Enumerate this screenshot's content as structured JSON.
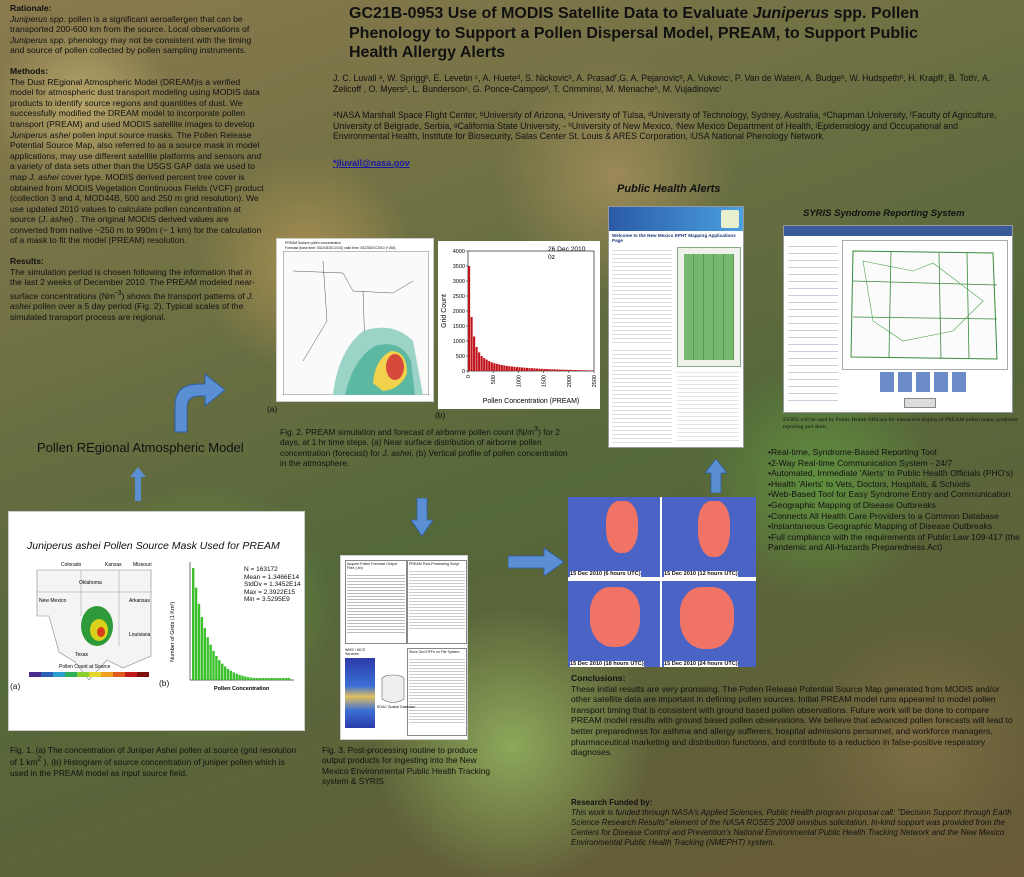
{
  "left": {
    "rationale_heading": "Rationale:",
    "rationale_pre": "Juniperus spp.",
    "rationale_body1": " pollen is a significant aeroallergen that can be transported 200-600 km from the source. Local observations of ",
    "rationale_mid": "Juniperus spp.",
    "rationale_body2": " phenology may not be consistent with the timing and source of pollen collected by pollen sampling instruments.",
    "methods_heading": "Methods:",
    "methods_body1": "The Dust REgional Atmospheric Model (DREAM)is a verified model for atmospheric dust transport modeling using MODIS data products to identify source regions and quantities of dust. We successfully modified the DREAM model to incorporate pollen transport (PREAM) and used MODIS satellite images to develop ",
    "methods_it1": "Juniperus ashei",
    "methods_body2": " pollen input source masks. The Pollen Release Potential Source Map, also referred to as a source mask in model applications, may use different satellite platforms and sensors and a variety of data sets other than the USGS GAP data we used to map ",
    "methods_it2": "J. ashei",
    "methods_body3": " cover type. MODIS derived percent tree cover is obtained from MODIS Vegetation Continuous Fields (VCF) product (collection 3 and 4, MOD44B, 500 and 250 m grid resolution). We use updated 2010 values to calculate pollen concentration at source (",
    "methods_it3": "J. ashei",
    "methods_body4": ") . The original MODIS derived values are converted from native ~250 m to 990m (~ 1 km) for the calculation of a mask to fit the model (PREAM) resolution.",
    "results_heading": "Results:",
    "results_body1": "The simulation period is chosen following the information that in the last 2 weeks of December 2010. The PREAM modeled near-surface concentrations (Nm",
    "results_sup": "-3",
    "results_body2": ") shows the transport patterns of ",
    "results_it": "J. ashei",
    "results_body3": " pollen over a 5 day period (Fig. 2). Typical scales of the simulated transport process are regional."
  },
  "header": {
    "title_pre": "GC21B-0953 Use of MODIS Satellite Data to Evaluate ",
    "title_italic": "Juniperus",
    "title_post": " spp. Pollen Phenology to Support a Pollen Dispersal Model, PREAM, to Support Public Health Allergy Alerts",
    "authors": "J. C. Luvall ᵃ, W. Spriggᵇ, E. Levetin ᶜ, A. Hueteᵈ, S. Nickovicᵇ, A. Prasadᶠ,G. A. Pejanovicᵇ, A. Vukovicⁱ, P. Van de Waterᵍ, A. Budgeʰ, W. Hudspethʰ, H. Krapflⁱ, B. Tothⁱ, A. Zelicoff , O. Myersʰ, L. Bundersonᶜ, G. Ponce-Camposᵈ, T.  Crimminsʲ, M. Menacheʰ, M. Vujadinovicⁱ",
    "affiliations": "ᵃNASA Marshall Space Flight Center, ᵇUniversity of Arizona, ᶜUniversity of Tulsa, ᵈUniversity of Technology, Sydney, Australia, ᵉChapman University, ᶠFaculty of Agriculture, University of Belgrade, Serbia, ᵍCalifornia State University, - ʰUniversity of New Mexico, ⁱNew Mexico Department of Health, ʲEpidemiology and Occupational and Environmental Health, Institute for Biosecurity, Salas Center St. Louis  &  ARES Corporation, ʲUSA National Phenology Network.",
    "email": "*jluvall@nasa.gov"
  },
  "fig2": {
    "map_title_1": "PREAM  Surface  pollen  concentration",
    "map_title_2": "Forecast  (base time: 00Z/15DEC2010)      valid  time: 00Z26DEC2010  (+264)",
    "label_a": "(a)",
    "label_b": "(b)",
    "caption_1": "Fig. 2. PREAM simulation and forecast of airborne pollen count (N/m",
    "caption_sup": "3",
    "caption_2": ") for 2 days, at 1 hr time steps. (a) Near surface distribution of airborne pollen concentration (forecast) for ",
    "caption_it": "J. ashei",
    "caption_3": ", (b) Vertical profile of pollen concentration in the atmosphere."
  },
  "model_label": "Pollen REgional Atmospheric Model",
  "fig1": {
    "panel_title": "Juniperus ashei Pollen Source Mask Used for PREAM",
    "states": [
      "Colorado",
      "Kansas",
      "Missouri",
      "Oklahoma",
      "New Mexico",
      "Arkansas",
      "Texas",
      "Louisiana"
    ],
    "legend_title": "Pollen Count at Source",
    "stats": [
      "N = 163172",
      "Mean = 1.3466E14",
      "StdDv = 1.3452E14",
      "Max = 2.3922E15",
      "Min = 3.5295E9"
    ],
    "ylabel": "Number of Grids (1 Km²)",
    "xlabel": "Pollen Concentration",
    "label_a": "(a)",
    "label_b": "(b)",
    "caption_1": "Fig. 1.  (a) The concentration of Juniper Ashei pollen at source (grid resolution of 1 km",
    "caption_sup": "2",
    "caption_2": " ). (b)  Histogram of source concentration of juniper pollen which is used in the PREAM model as input source field."
  },
  "fig3": {
    "caption": "Fig. 3. Post-processing routine to produce output products for ingesting into the New Mexico Environmental Public Health Tracking system & SYRIS",
    "box1": "Acquire Pollen Forecast Output Files (.txt)",
    "box2": "PREAM Post-Processing Script",
    "box3": "Store GeoTIFFs on File System",
    "box4": "WMS / WCS Services",
    "box5": "EDAC Spatial Database"
  },
  "forecast_maps": {
    "labels": [
      "15 Dec 2010 (6 hours UTC)",
      "15 Dec 2010 (12 hours UTC)",
      "15 Dec 2010 (18 hours UTC)",
      "15 Dec 2010 (24 hours UTC)"
    ]
  },
  "public_health": {
    "heading": "Public Health Alerts",
    "portal_banner": "Welcome to the New Mexico EPHT Mapping Applications Page"
  },
  "syris": {
    "heading": "SYRIS Syndrome Reporting System",
    "note": "SYRIS will be used by Public Health Officials for interactive display of PREAM pollen maps, syndrome reporting and alerts",
    "bullets": [
      "•Real-time, Syndrome-Based Reporting Tool",
      "•2-Way Real-time Communication System - 24/7",
      "•Automated, Immediate 'Alerts' to Public Health Officials (PHO's)",
      "•Health 'Alerts' to Vets, Doctors, Hospitals, & Schools",
      "•Web-Based Tool for Easy Syndrome Entry and Communication",
      "•Geographic Mapping of Disease Outbreaks",
      "•Connects All Health Care Providers to a Common Database",
      "•Instantaneous Geographic Mapping of Disease Outbreaks",
      "•Full compliance with the requirements of Public Law 109-417 (the Pandemic and All-Hazards Preparedness Act)"
    ]
  },
  "conclusions": {
    "heading": "Conclusions:",
    "body": "These initial results are very promising. The Pollen Release Potential Source Map generated from MODIS and/or other satellite data are important in defining pollen sources. Initial PREAM model runs appeared to model pollen transport timing that is consistent with ground based pollen observations. Future work will be done to compare PREAM model results with ground based pollen observations. We believe that advanced pollen forecasts will lead to better preparedness for asthma and allergy sufferers, hospital admissions personnel, and workforce managers, pharmaceutical marketing and distribution functions, and contribute to a reduction in false-positive respiratory diagnoses."
  },
  "funding": {
    "heading": "Research Funded by:",
    "body": "This work is funded through NASA's Applied Sciences, Public Health program proposal call: \"Decision Support through Earth Science Research Results\" element of the NASA ROSES 2008 omnibus solicitation.  In-kind support was provided from the Centers for Disease Control and Prevention's National Environmental Public Health Tracking Network and  the New Mexico Environmental Public Health Tracking (NMEPHT) system."
  },
  "chart_data": {
    "type": "bar",
    "annotation": "26 Dec 2010\n0z",
    "date_line1": "26 Dec 2010",
    "date_line2": "0z",
    "ylabel": "Grid Count",
    "xlabel": "Pollen Concentration (PREAM)",
    "ylim": [
      0,
      4000
    ],
    "xlim": [
      0,
      2500
    ],
    "yticks": [
      "0",
      "500",
      "1000",
      "1500",
      "2000",
      "2500",
      "3000",
      "3500",
      "4000"
    ],
    "xticks": [
      "0",
      "500",
      "1000",
      "1500",
      "2000",
      "2500"
    ],
    "bin_width": 50,
    "x": [
      0,
      50,
      100,
      150,
      200,
      250,
      300,
      350,
      400,
      450,
      500,
      550,
      600,
      650,
      700,
      750,
      800,
      850,
      900,
      950,
      1000,
      1050,
      1100,
      1150,
      1200,
      1250,
      1300,
      1350,
      1400,
      1450,
      1500,
      1550,
      1600,
      1650,
      1700,
      1750,
      1800,
      1850,
      1900,
      1950,
      2000,
      2050,
      2100,
      2150,
      2200,
      2250,
      2300,
      2350,
      2400,
      2450
    ],
    "values": [
      3500,
      1800,
      1150,
      800,
      620,
      500,
      430,
      380,
      330,
      290,
      260,
      240,
      220,
      200,
      185,
      170,
      160,
      150,
      140,
      130,
      125,
      118,
      110,
      105,
      98,
      92,
      88,
      82,
      78,
      74,
      70,
      66,
      62,
      58,
      55,
      52,
      48,
      45,
      42,
      40,
      38,
      35,
      33,
      30,
      28,
      26,
      24,
      22,
      20,
      18
    ]
  },
  "colors": {
    "chart_bar": "#c0141c",
    "histogram_bar": "#3bbf2a",
    "accent_blue": "#3f77c0",
    "link": "#1a1aa6"
  }
}
